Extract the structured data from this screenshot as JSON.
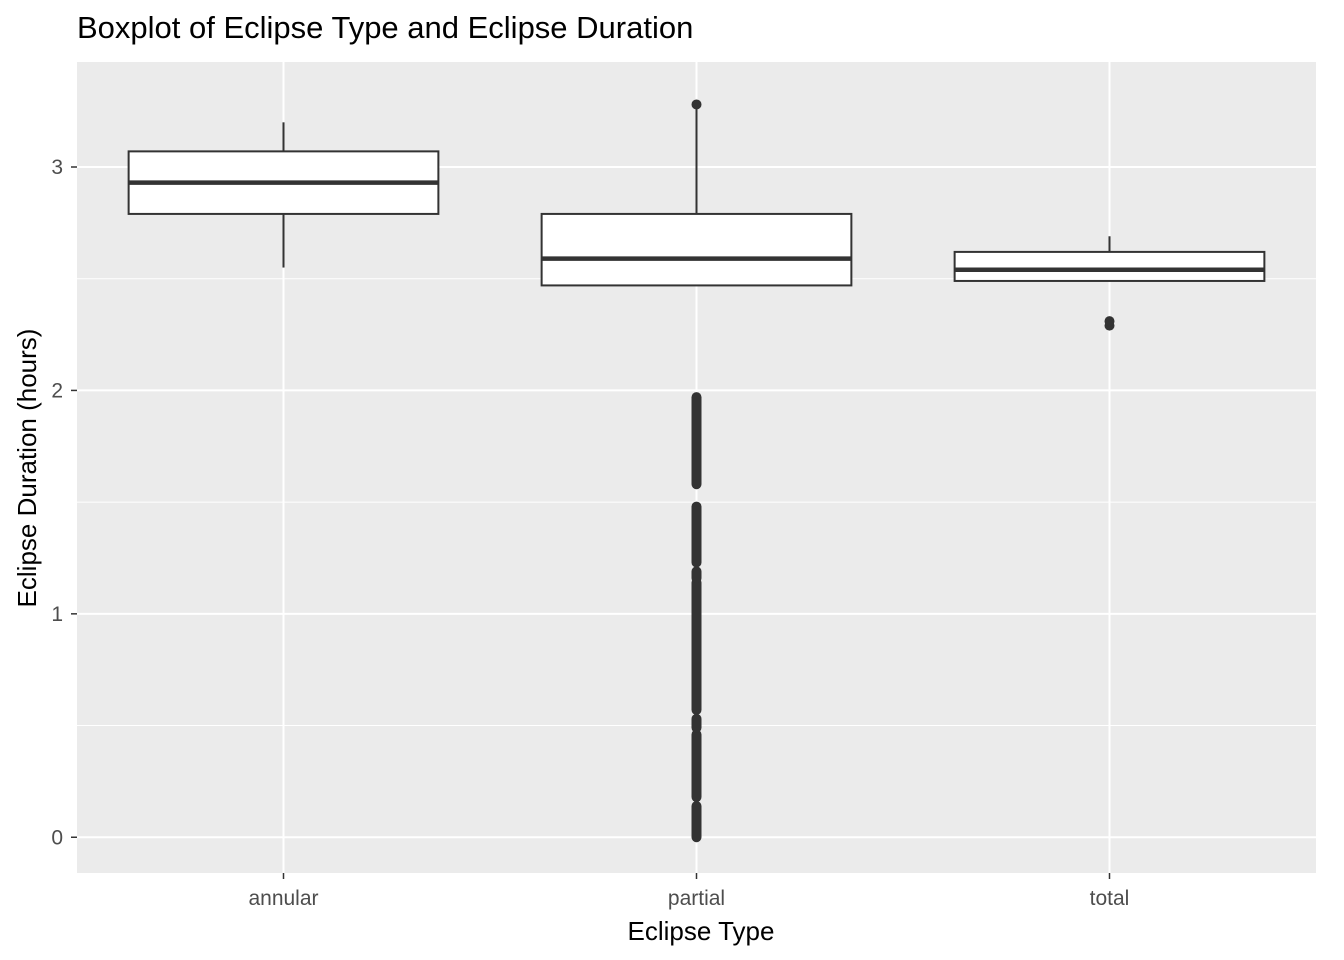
{
  "chart_data": {
    "type": "boxplot",
    "title": "Boxplot of Eclipse Type and Eclipse Duration",
    "xlabel": "Eclipse Type",
    "ylabel": "Eclipse Duration (hours)",
    "categories": [
      "annular",
      "partial",
      "total"
    ],
    "ylim": [
      -0.16,
      3.47
    ],
    "yticks": [
      0,
      1,
      2,
      3
    ],
    "grid": true,
    "colors": {
      "panel": "#ebebeb",
      "grid": "#ffffff",
      "box_fill": "#ffffff",
      "box_line": "#333333",
      "outlier": "#333333"
    },
    "boxes": [
      {
        "category": "annular",
        "whisker_low": 2.55,
        "q1": 2.79,
        "median": 2.93,
        "q3": 3.07,
        "whisker_high": 3.2,
        "outliers": []
      },
      {
        "category": "partial",
        "whisker_low": 2.47,
        "q1": 2.47,
        "median": 2.59,
        "q3": 2.79,
        "whisker_high": 3.28,
        "outliers": [
          3.28
        ],
        "outlier_ranges": [
          [
            0.0,
            0.14
          ],
          [
            0.18,
            0.46
          ],
          [
            0.49,
            0.53
          ],
          [
            0.57,
            1.14
          ],
          [
            1.16,
            1.19
          ],
          [
            1.23,
            1.48
          ],
          [
            1.58,
            1.97
          ]
        ]
      },
      {
        "category": "total",
        "whisker_low": 2.49,
        "q1": 2.49,
        "median": 2.54,
        "q3": 2.62,
        "whisker_high": 2.69,
        "outliers": [
          2.29,
          2.31
        ]
      }
    ]
  }
}
